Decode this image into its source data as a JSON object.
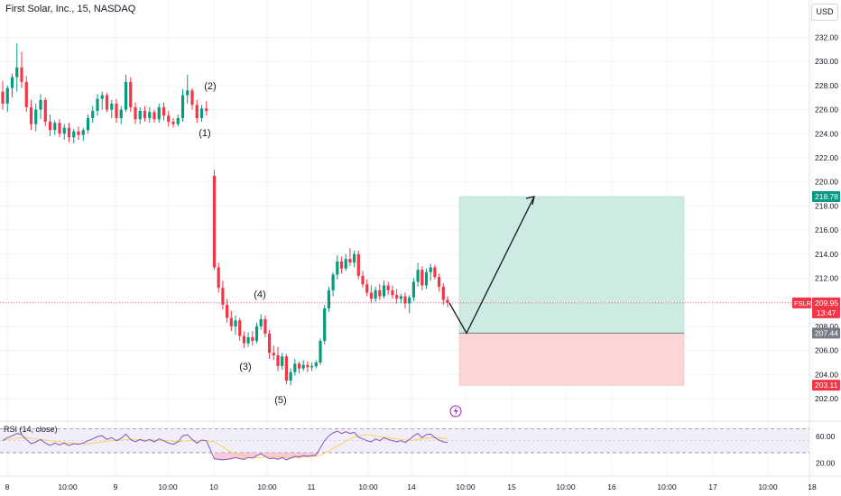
{
  "header": {
    "title": "First Solar, Inc., 15, NASDAQ",
    "currency_button": "USD"
  },
  "colors": {
    "up": "#089981",
    "down": "#f23645",
    "rsi_line": "#7e57c2",
    "rsi_ma": "#f7d45e",
    "profit_zone": "#cdeae3",
    "stop_zone": "#fbd6d5",
    "axis_text": "#131722"
  },
  "price_axis": {
    "ticks": [
      202,
      204,
      206,
      208,
      210,
      212,
      214,
      216,
      218,
      220,
      222,
      224,
      226,
      228,
      230,
      232
    ],
    "tick_labels": [
      "202.00",
      "204.00",
      "206.00",
      "208.00",
      "210.00",
      "212.00",
      "214.00",
      "216.00",
      "218.00",
      "220.00",
      "222.00",
      "224.00",
      "226.00",
      "228.00",
      "230.00",
      "232.00"
    ]
  },
  "time_axis": {
    "labels": [
      "8",
      "10:00",
      "9",
      "10:00",
      "10",
      "10:00",
      "11",
      "10:00",
      "14",
      "10:00",
      "15",
      "10:00",
      "16",
      "10:00",
      "17",
      "10:00",
      "18"
    ]
  },
  "badges": {
    "target": "218.78",
    "symbol": "FSLR",
    "last_price": "209.95",
    "countdown": "13:47",
    "entry": "207.44",
    "stop": "203.11"
  },
  "rsi": {
    "title": "RSI (14, close)",
    "levels": [
      "60.00",
      "20.00"
    ]
  },
  "wave_labels": [
    "(2)",
    "(1)",
    "(4)",
    "(3)",
    "(5)"
  ],
  "chart_data": {
    "type": "candlestick",
    "title": "First Solar, Inc., 15, NASDAQ",
    "symbol": "FSLR",
    "timeframe": "15",
    "exchange": "NASDAQ",
    "ylim": [
      201,
      233
    ],
    "last_price": 209.95,
    "candles": [
      [
        227.5,
        228.4,
        226.0,
        226.5
      ],
      [
        226.5,
        228.0,
        225.8,
        227.8
      ],
      [
        227.8,
        229.0,
        227.0,
        228.7
      ],
      [
        228.7,
        231.5,
        227.5,
        229.5
      ],
      [
        229.5,
        230.8,
        227.8,
        228.3
      ],
      [
        228.3,
        228.8,
        225.8,
        226.2
      ],
      [
        226.2,
        226.8,
        224.3,
        224.8
      ],
      [
        224.8,
        226.5,
        224.2,
        226.0
      ],
      [
        226.0,
        227.3,
        225.2,
        226.8
      ],
      [
        226.8,
        227.0,
        224.6,
        225.0
      ],
      [
        225.0,
        225.6,
        223.8,
        224.3
      ],
      [
        224.3,
        225.1,
        223.9,
        224.9
      ],
      [
        224.9,
        225.2,
        223.7,
        224.0
      ],
      [
        224.0,
        224.8,
        223.5,
        224.5
      ],
      [
        224.5,
        224.9,
        223.3,
        223.7
      ],
      [
        223.7,
        224.4,
        223.2,
        224.2
      ],
      [
        224.2,
        224.6,
        223.5,
        223.9
      ],
      [
        223.9,
        224.5,
        223.4,
        224.3
      ],
      [
        224.3,
        225.6,
        224.0,
        225.3
      ],
      [
        225.3,
        226.3,
        224.9,
        225.9
      ],
      [
        225.9,
        227.3,
        225.5,
        226.9
      ],
      [
        226.9,
        227.5,
        226.0,
        227.2
      ],
      [
        227.2,
        227.4,
        225.8,
        226.0
      ],
      [
        226.0,
        226.8,
        225.3,
        226.5
      ],
      [
        226.5,
        226.9,
        224.9,
        225.3
      ],
      [
        225.3,
        226.3,
        224.8,
        226.0
      ],
      [
        226.0,
        228.9,
        225.8,
        228.3
      ],
      [
        228.3,
        228.7,
        225.8,
        226.2
      ],
      [
        226.2,
        226.6,
        224.8,
        225.2
      ],
      [
        225.2,
        226.2,
        224.8,
        225.9
      ],
      [
        225.9,
        226.3,
        225.0,
        225.3
      ],
      [
        225.3,
        226.2,
        224.9,
        225.8
      ],
      [
        225.8,
        226.0,
        224.9,
        225.2
      ],
      [
        225.2,
        226.5,
        224.9,
        226.2
      ],
      [
        226.2,
        226.6,
        225.1,
        225.5
      ],
      [
        225.5,
        225.9,
        224.6,
        225.0
      ],
      [
        225.0,
        225.3,
        224.5,
        224.8
      ],
      [
        224.8,
        225.6,
        224.6,
        225.3
      ],
      [
        225.3,
        227.7,
        225.0,
        227.2
      ],
      [
        227.2,
        228.9,
        226.5,
        227.6
      ],
      [
        227.6,
        227.8,
        226.0,
        226.4
      ],
      [
        226.4,
        226.8,
        224.9,
        225.3
      ],
      [
        225.3,
        226.4,
        225.0,
        226.1
      ],
      [
        226.1,
        226.7,
        225.5,
        225.9
      ],
      [
        220.5,
        221.0,
        212.7,
        212.9
      ],
      [
        212.9,
        213.3,
        210.8,
        211.2
      ],
      [
        211.2,
        211.8,
        209.4,
        209.8
      ],
      [
        209.8,
        210.3,
        208.3,
        208.7
      ],
      [
        208.7,
        209.3,
        207.6,
        208.0
      ],
      [
        208.0,
        208.9,
        207.3,
        208.5
      ],
      [
        208.5,
        208.7,
        206.8,
        207.2
      ],
      [
        207.2,
        207.6,
        206.2,
        206.6
      ],
      [
        206.6,
        207.5,
        206.3,
        207.1
      ],
      [
        207.1,
        207.6,
        206.4,
        206.8
      ],
      [
        206.8,
        208.3,
        206.6,
        208.0
      ],
      [
        208.0,
        209.0,
        207.7,
        208.6
      ],
      [
        208.6,
        208.9,
        207.1,
        207.4
      ],
      [
        207.4,
        207.7,
        205.3,
        205.8
      ],
      [
        205.8,
        206.4,
        205.2,
        205.6
      ],
      [
        205.6,
        206.3,
        204.3,
        204.7
      ],
      [
        204.7,
        205.8,
        204.4,
        205.5
      ],
      [
        205.5,
        205.7,
        203.2,
        203.5
      ],
      [
        203.5,
        204.5,
        203.1,
        204.2
      ],
      [
        204.2,
        205.3,
        203.9,
        204.9
      ],
      [
        204.9,
        205.1,
        204.1,
        204.5
      ],
      [
        204.5,
        205.2,
        204.3,
        204.8
      ],
      [
        204.8,
        205.1,
        204.2,
        204.6
      ],
      [
        204.6,
        205.0,
        204.3,
        204.7
      ],
      [
        204.7,
        205.2,
        204.5,
        205.0
      ],
      [
        205.0,
        207.0,
        204.8,
        206.8
      ],
      [
        206.8,
        209.8,
        206.5,
        209.5
      ],
      [
        209.5,
        211.3,
        209.2,
        211.0
      ],
      [
        211.0,
        212.5,
        210.5,
        212.3
      ],
      [
        212.3,
        213.9,
        211.9,
        213.4
      ],
      [
        213.4,
        213.8,
        212.4,
        212.8
      ],
      [
        212.8,
        214.0,
        212.6,
        213.6
      ],
      [
        213.6,
        214.5,
        213.0,
        213.3
      ],
      [
        213.3,
        214.3,
        212.9,
        214.0
      ],
      [
        214.0,
        214.3,
        211.9,
        212.2
      ],
      [
        212.2,
        212.6,
        211.2,
        211.5
      ],
      [
        211.5,
        211.9,
        210.5,
        210.8
      ],
      [
        210.8,
        211.4,
        209.9,
        210.3
      ],
      [
        210.3,
        211.3,
        210.0,
        211.0
      ],
      [
        211.0,
        211.5,
        210.2,
        210.5
      ],
      [
        210.5,
        211.8,
        210.3,
        211.4
      ],
      [
        211.4,
        211.7,
        210.6,
        211.0
      ],
      [
        211.0,
        211.4,
        210.3,
        210.6
      ],
      [
        210.6,
        211.1,
        209.9,
        210.3
      ],
      [
        210.3,
        210.7,
        209.9,
        210.5
      ],
      [
        210.5,
        210.8,
        209.5,
        209.9
      ],
      [
        209.9,
        210.6,
        209.1,
        210.4
      ],
      [
        210.4,
        212.0,
        210.1,
        211.7
      ],
      [
        211.7,
        213.3,
        211.3,
        212.7
      ],
      [
        212.7,
        213.0,
        211.0,
        211.4
      ],
      [
        211.4,
        212.8,
        211.1,
        212.5
      ],
      [
        212.5,
        213.2,
        211.8,
        212.9
      ],
      [
        212.9,
        213.1,
        211.9,
        212.1
      ],
      [
        212.1,
        212.4,
        210.9,
        211.3
      ],
      [
        211.3,
        211.6,
        209.8,
        210.2
      ],
      [
        210.2,
        210.5,
        209.6,
        209.95
      ]
    ],
    "long_position": {
      "entry": 207.44,
      "target": 218.78,
      "stop": 203.11
    },
    "projection_path": [
      [
        209.95,
        "now"
      ],
      [
        207.44,
        "entry"
      ],
      [
        218.78,
        "target"
      ]
    ],
    "rsi": {
      "period": 14,
      "source": "close",
      "upper_band": 70,
      "lower_band": 30,
      "ylim": [
        15,
        75
      ],
      "values": [
        50,
        55,
        58,
        62,
        60,
        52,
        45,
        48,
        52,
        46,
        42,
        46,
        43,
        46,
        42,
        45,
        44,
        46,
        50,
        53,
        57,
        58,
        52,
        55,
        50,
        54,
        61,
        52,
        48,
        52,
        49,
        52,
        48,
        53,
        50,
        46,
        44,
        48,
        58,
        60,
        52,
        46,
        51,
        50,
        20,
        19,
        18,
        19,
        20,
        22,
        20,
        19,
        22,
        21,
        25,
        28,
        24,
        20,
        21,
        19,
        22,
        18,
        21,
        24,
        23,
        25,
        24,
        25,
        26,
        38,
        50,
        58,
        63,
        66,
        62,
        65,
        62,
        64,
        56,
        53,
        50,
        48,
        53,
        50,
        55,
        52,
        50,
        48,
        50,
        47,
        52,
        58,
        62,
        55,
        60,
        61,
        55,
        51,
        48,
        47
      ],
      "ma_values": [
        52,
        52,
        53,
        54,
        55,
        55,
        54,
        53,
        52,
        51,
        50,
        49,
        48,
        47,
        46,
        46,
        45,
        45,
        45,
        46,
        47,
        48,
        49,
        50,
        51,
        51,
        52,
        52,
        52,
        52,
        51,
        51,
        51,
        50,
        50,
        50,
        49,
        49,
        49,
        50,
        50,
        50,
        50,
        50,
        48,
        44,
        40,
        35,
        31,
        28,
        26,
        24,
        23,
        22,
        22,
        22,
        23,
        23,
        23,
        23,
        22,
        22,
        22,
        22,
        22,
        23,
        23,
        24,
        24,
        26,
        29,
        33,
        37,
        41,
        45,
        49,
        53,
        56,
        58,
        59,
        60,
        59,
        58,
        57,
        56,
        55,
        54,
        53,
        52,
        51,
        51,
        51,
        52,
        53,
        54,
        55,
        55,
        55,
        54,
        53
      ]
    }
  }
}
